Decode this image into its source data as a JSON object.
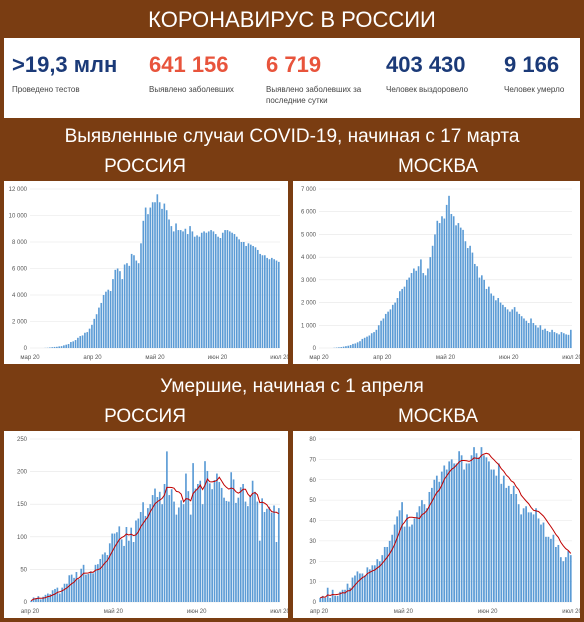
{
  "header": {
    "title": "КОРОНАВИРУС В РОССИИ"
  },
  "stats": [
    {
      "value": ">19,3 млн",
      "label": "Проведено тестов",
      "color": "#1b3a78"
    },
    {
      "value": "641 156",
      "label": "Выявлено заболевших",
      "color": "#e8543c"
    },
    {
      "value": "6 719",
      "label": "Выявлено заболевших за последние сутки",
      "color": "#e8543c"
    },
    {
      "value": "403 430",
      "label": "Человек выздоровело",
      "color": "#1b3a78"
    },
    {
      "value": "9 166",
      "label": "Человек умерло",
      "color": "#1b3a78"
    }
  ],
  "sections": {
    "cases_title": "Выявленные случаи COVID-19, начиная с 17 марта",
    "deaths_title": "Умершие, начиная с 1 апреля",
    "russia": "РОССИЯ",
    "moscow": "МОСКВА"
  },
  "chart_data": [
    {
      "id": "cases_russia",
      "type": "bar",
      "series_color": "#5b9bd5",
      "ylim": [
        0,
        12000
      ],
      "yticks": [
        "0",
        "2 000",
        "4 000",
        "6 000",
        "8 000",
        "10 000",
        "12 000"
      ],
      "xticks": [
        "мар 20",
        "апр 20",
        "май 20",
        "июн 20",
        "июл 20"
      ],
      "start": "2020-03-17",
      "values": [
        0,
        0,
        0,
        0,
        0,
        0,
        10,
        20,
        40,
        60,
        80,
        90,
        120,
        140,
        200,
        250,
        300,
        450,
        500,
        600,
        770,
        900,
        950,
        1150,
        1200,
        1460,
        1750,
        2200,
        2550,
        3050,
        3400,
        4000,
        4250,
        4400,
        4300,
        5200,
        5900,
        6000,
        5800,
        5200,
        6300,
        6400,
        6200,
        7100,
        7000,
        6600,
        6400,
        7900,
        9600,
        10600,
        10100,
        10600,
        11000,
        11000,
        11600,
        11000,
        10500,
        10900,
        10400,
        9700,
        9200,
        8800,
        9400,
        8900,
        8900,
        8800,
        9000,
        8600,
        9200,
        8800,
        8400,
        8500,
        8400,
        8700,
        8800,
        8700,
        8800,
        8900,
        8800,
        8600,
        8400,
        8300,
        8700,
        8900,
        8900,
        8800,
        8700,
        8600,
        8400,
        8200,
        8000,
        8000,
        7700,
        7900,
        7800,
        7700,
        7600,
        7400,
        7100,
        7000,
        7000,
        6800,
        6700,
        6800,
        6700,
        6600,
        6500
      ]
    },
    {
      "id": "cases_moscow",
      "type": "bar",
      "series_color": "#5b9bd5",
      "ylim": [
        0,
        7000
      ],
      "yticks": [
        "0",
        "1 000",
        "2 000",
        "3 000",
        "4 000",
        "5 000",
        "6 000",
        "7 000"
      ],
      "xticks": [
        "мар 20",
        "апр 20",
        "май 20",
        "июн 20",
        "июл 20"
      ],
      "start": "2020-03-17",
      "values": [
        0,
        0,
        0,
        0,
        0,
        0,
        10,
        20,
        30,
        40,
        60,
        80,
        100,
        130,
        180,
        200,
        250,
        300,
        400,
        450,
        500,
        550,
        650,
        700,
        800,
        1000,
        1200,
        1300,
        1500,
        1600,
        1700,
        1900,
        2000,
        2200,
        2500,
        2600,
        2700,
        3000,
        3100,
        3300,
        3500,
        3400,
        3600,
        3900,
        3300,
        3200,
        3500,
        4000,
        4500,
        5000,
        5600,
        5500,
        5800,
        5700,
        6300,
        6700,
        5900,
        5800,
        5400,
        5500,
        5300,
        5200,
        4700,
        4400,
        4500,
        4200,
        3700,
        3600,
        3100,
        3200,
        3000,
        2600,
        2700,
        2400,
        2300,
        2100,
        2200,
        2000,
        1900,
        1800,
        1700,
        1600,
        1700,
        1800,
        1600,
        1500,
        1400,
        1300,
        1200,
        1100,
        1300,
        1100,
        1000,
        900,
        1000,
        800,
        850,
        750,
        700,
        800,
        700,
        650,
        600,
        700,
        650,
        600,
        580,
        800
      ]
    },
    {
      "id": "deaths_russia",
      "type": "bar",
      "series_color": "#5b9bd5",
      "line_color": "#c00000",
      "ylim": [
        0,
        250
      ],
      "yticks": [
        "0",
        "50",
        "100",
        "150",
        "200",
        "250"
      ],
      "xticks": [
        "апр 20",
        "май 20",
        "июн 20",
        "июл 20"
      ],
      "start": "2020-04-01",
      "values": [
        2,
        7,
        6,
        9,
        4,
        8,
        11,
        13,
        12,
        18,
        20,
        22,
        13,
        22,
        28,
        28,
        41,
        42,
        37,
        46,
        35,
        51,
        57,
        42,
        43,
        47,
        44,
        57,
        58,
        66,
        73,
        76,
        72,
        90,
        105,
        105,
        107,
        116,
        96,
        86,
        115,
        94,
        114,
        92,
        125,
        128,
        138,
        153,
        132,
        144,
        150,
        164,
        174,
        161,
        169,
        150,
        181,
        231,
        164,
        173,
        154,
        134,
        145,
        156,
        150,
        197,
        170,
        134,
        213,
        174,
        181,
        186,
        150,
        216,
        201,
        182,
        173,
        187,
        197,
        184,
        175,
        160,
        155,
        154,
        199,
        188,
        152,
        160,
        176,
        181,
        154,
        147,
        162,
        186,
        169,
        154,
        94,
        159,
        138,
        143,
        146,
        137,
        148,
        92,
        144
      ]
    },
    {
      "id": "deaths_moscow",
      "type": "bar",
      "series_color": "#5b9bd5",
      "line_color": "#c00000",
      "ylim": [
        0,
        80
      ],
      "yticks": [
        "0",
        "10",
        "20",
        "30",
        "40",
        "50",
        "60",
        "70",
        "80"
      ],
      "xticks": [
        "апр 20",
        "май 20",
        "июн 20",
        "июл 20"
      ],
      "start": "2020-04-01",
      "values": [
        2,
        3,
        2,
        7,
        2,
        6,
        3,
        3,
        5,
        6,
        6,
        9,
        7,
        12,
        13,
        15,
        14,
        14,
        13,
        17,
        16,
        18,
        18,
        21,
        20,
        23,
        27,
        27,
        30,
        33,
        38,
        42,
        45,
        49,
        37,
        43,
        37,
        38,
        41,
        44,
        47,
        50,
        48,
        46,
        54,
        56,
        60,
        62,
        59,
        64,
        67,
        65,
        69,
        70,
        68,
        68,
        74,
        72,
        65,
        68,
        68,
        72,
        76,
        73,
        71,
        76,
        72,
        71,
        69,
        65,
        65,
        62,
        68,
        58,
        62,
        56,
        57,
        53,
        57,
        53,
        48,
        43,
        46,
        47,
        44,
        44,
        43,
        46,
        41,
        38,
        39,
        32,
        32,
        31,
        33,
        27,
        28,
        22,
        20,
        22,
        25,
        23
      ]
    }
  ]
}
